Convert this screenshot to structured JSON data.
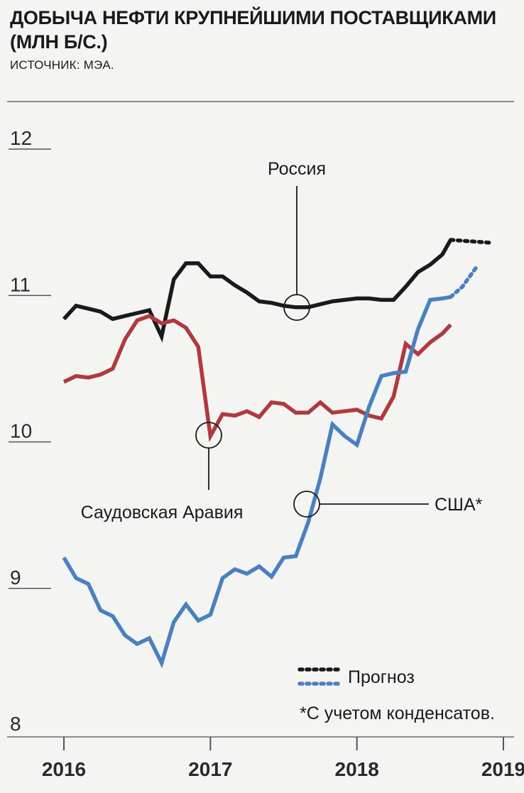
{
  "header": {
    "title": "ДОБЫЧА НЕФТИ КРУПНЕЙШИМИ ПОСТАВЩИКАМИ (МЛН Б/С.)",
    "source": "ИСТОЧНИК: МЭА."
  },
  "colors": {
    "russia": "#1a1a1a",
    "saudi": "#b0393f",
    "usa": "#4a80c0",
    "grid": "#8c8c8c"
  },
  "chart_data": {
    "type": "line",
    "title": "ДОБЫЧА НЕФТИ КРУПНЕЙШИМИ ПОСТАВЩИКАМИ (МЛН Б/С.)",
    "xlabel": "",
    "ylabel": "",
    "xlim": [
      2016,
      2019
    ],
    "ylim": [
      8,
      12
    ],
    "yticks": [
      8,
      9,
      10,
      11,
      12
    ],
    "xticks": [
      2016,
      2017,
      2018,
      2019
    ],
    "ytick_labels": [
      "8",
      "9",
      "10",
      "11",
      "12"
    ],
    "xtick_labels": [
      "2016",
      "2017",
      "2018",
      "2019"
    ],
    "grid": false,
    "series": [
      {
        "name": "Россия",
        "color": "#1a1a1a",
        "x": [
          2016.0,
          2016.083,
          2016.167,
          2016.25,
          2016.333,
          2016.417,
          2016.5,
          2016.583,
          2016.667,
          2016.75,
          2016.833,
          2016.917,
          2017.0,
          2017.083,
          2017.167,
          2017.25,
          2017.333,
          2017.417,
          2017.5,
          2017.583,
          2017.667,
          2017.75,
          2017.833,
          2017.917,
          2018.0,
          2018.083,
          2018.167,
          2018.25,
          2018.333,
          2018.417,
          2018.5,
          2018.583,
          2018.64
        ],
        "y": [
          10.84,
          10.93,
          10.91,
          10.89,
          10.84,
          10.86,
          10.88,
          10.9,
          10.72,
          11.11,
          11.22,
          11.22,
          11.13,
          11.13,
          11.07,
          11.02,
          10.96,
          10.95,
          10.93,
          10.92,
          10.92,
          10.94,
          10.96,
          10.97,
          10.98,
          10.98,
          10.97,
          10.97,
          11.06,
          11.16,
          11.21,
          11.28,
          11.38
        ],
        "forecast": {
          "x": [
            2018.64,
            2018.917
          ],
          "y": [
            11.38,
            11.36
          ]
        }
      },
      {
        "name": "Саудовская Аравия",
        "color": "#b0393f",
        "x": [
          2016.0,
          2016.083,
          2016.167,
          2016.25,
          2016.333,
          2016.417,
          2016.5,
          2016.583,
          2016.667,
          2016.75,
          2016.833,
          2016.917,
          2017.0,
          2017.083,
          2017.167,
          2017.25,
          2017.333,
          2017.417,
          2017.5,
          2017.583,
          2017.667,
          2017.75,
          2017.833,
          2017.917,
          2018.0,
          2018.083,
          2018.167,
          2018.25,
          2018.333,
          2018.417,
          2018.5,
          2018.583,
          2018.64
        ],
        "y": [
          10.41,
          10.45,
          10.44,
          10.46,
          10.5,
          10.7,
          10.83,
          10.86,
          10.81,
          10.83,
          10.78,
          10.65,
          10.04,
          10.19,
          10.18,
          10.21,
          10.17,
          10.27,
          10.26,
          10.2,
          10.2,
          10.27,
          10.2,
          10.21,
          10.22,
          10.18,
          10.16,
          10.31,
          10.67,
          10.6,
          10.68,
          10.74,
          10.8
        ],
        "forecast": null
      },
      {
        "name": "США*",
        "color": "#4a80c0",
        "x": [
          2016.0,
          2016.083,
          2016.167,
          2016.25,
          2016.333,
          2016.417,
          2016.5,
          2016.583,
          2016.667,
          2016.75,
          2016.833,
          2016.917,
          2017.0,
          2017.083,
          2017.167,
          2017.25,
          2017.333,
          2017.417,
          2017.5,
          2017.583,
          2017.667,
          2017.75,
          2017.833,
          2017.917,
          2018.0,
          2018.083,
          2018.167,
          2018.25,
          2018.333,
          2018.417,
          2018.5,
          2018.583,
          2018.64
        ],
        "y": [
          9.21,
          9.07,
          9.03,
          8.85,
          8.81,
          8.68,
          8.62,
          8.66,
          8.49,
          8.77,
          8.89,
          8.78,
          8.82,
          9.07,
          9.13,
          9.1,
          9.15,
          9.08,
          9.21,
          9.22,
          9.45,
          9.75,
          10.12,
          10.04,
          9.98,
          10.24,
          10.45,
          10.47,
          10.48,
          10.77,
          10.97,
          10.98,
          10.99
        ],
        "forecast": {
          "x": [
            2018.64,
            2018.72,
            2018.82
          ],
          "y": [
            10.99,
            11.06,
            11.2
          ]
        }
      }
    ],
    "annotations": {
      "russia_label": "Россия",
      "saudi_label": "Саудовская Аравия",
      "usa_label": "США*",
      "legend_label": "Прогноз",
      "footnote": "*С учетом конденсатов."
    }
  }
}
